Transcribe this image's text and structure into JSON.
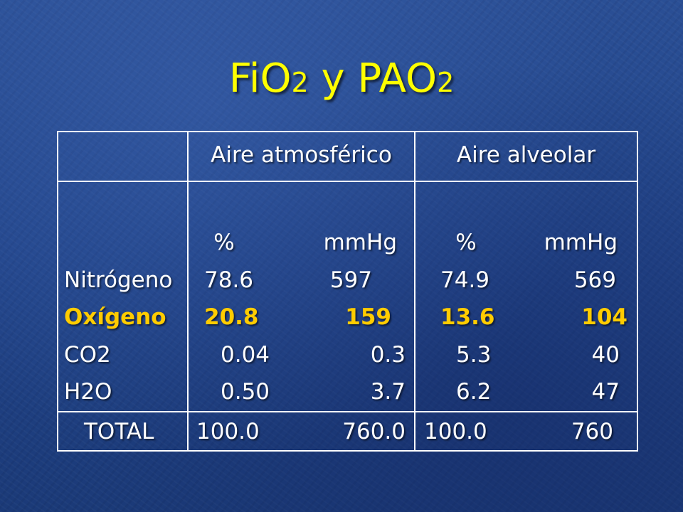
{
  "slide": {
    "title_main_1": "FiO",
    "title_sub_1": "2",
    "title_main_2": " y PAO",
    "title_sub_2": "2"
  },
  "table": {
    "columns": [
      "Aire atmosférico",
      "Aire alveolar"
    ],
    "unit_percent": "%",
    "unit_mmhg": "mmHg",
    "rows": [
      {
        "label": "Nitrógeno",
        "atm_pct": "78.6",
        "atm_mmhg": "597",
        "alv_pct": "74.9",
        "alv_mmhg": "569",
        "highlight": false
      },
      {
        "label": "Oxígeno",
        "atm_pct": "20.8",
        "atm_mmhg": "159",
        "alv_pct": "13.6",
        "alv_mmhg": "104",
        "highlight": true
      },
      {
        "label": "CO2",
        "atm_pct": "0.04",
        "atm_mmhg": "0.3",
        "alv_pct": "5.3",
        "alv_mmhg": "40",
        "highlight": false
      },
      {
        "label": "H2O",
        "atm_pct": "0.50",
        "atm_mmhg": "3.7",
        "alv_pct": "6.2",
        "alv_mmhg": "47",
        "highlight": false
      }
    ],
    "total": {
      "label": "TOTAL",
      "atm_pct": "100.0",
      "atm_mmhg": "760.0",
      "alv_pct": "100.0",
      "alv_mmhg": "760"
    }
  },
  "colors": {
    "background": "#22458a",
    "title": "#ffff00",
    "text": "#ffffff",
    "highlight": "#ffcc00",
    "grid": "#ffffff"
  }
}
